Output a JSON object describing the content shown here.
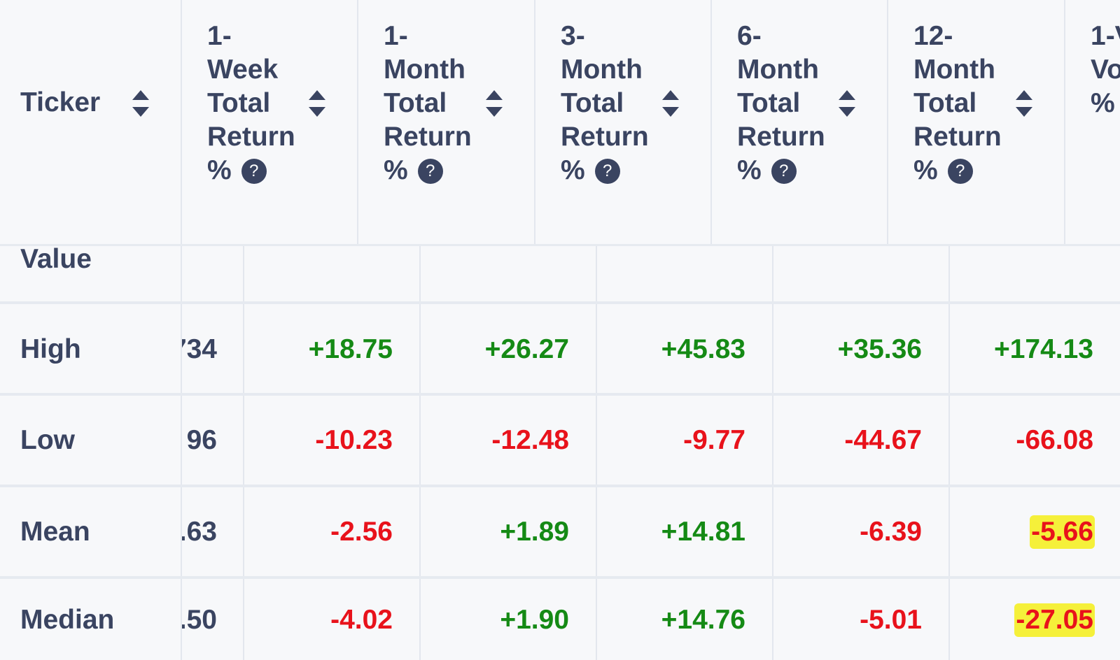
{
  "header": {
    "columns": [
      {
        "lines": [
          "Ticker"
        ]
      },
      {
        "lines": [
          "1-",
          "Week",
          "Total",
          "Return",
          "%"
        ]
      },
      {
        "lines": [
          "1-",
          "Month",
          "Total",
          "Return",
          "%"
        ]
      },
      {
        "lines": [
          "3-",
          "Month",
          "Total",
          "Return",
          "%"
        ]
      },
      {
        "lines": [
          "6-",
          "Month",
          "Total",
          "Return",
          "%"
        ]
      },
      {
        "lines": [
          "12-",
          "Month",
          "Total",
          "Return",
          "%"
        ]
      },
      {
        "lines": [
          "1-V",
          "Vo",
          "%"
        ]
      }
    ]
  },
  "table": {
    "section_label": "Value",
    "rows": [
      {
        "label": "High",
        "partial": "734",
        "cells": [
          {
            "text": "+18.75"
          },
          {
            "text": "+26.27"
          },
          {
            "text": "+45.83"
          },
          {
            "text": "+35.36"
          },
          {
            "text": "+174.13"
          }
        ]
      },
      {
        "label": "Low",
        "partial": "96",
        "cells": [
          {
            "text": "-10.23"
          },
          {
            "text": "-12.48"
          },
          {
            "text": "-9.77"
          },
          {
            "text": "-44.67"
          },
          {
            "text": "-66.08"
          }
        ]
      },
      {
        "label": "Mean",
        "partial": ".63",
        "cells": [
          {
            "text": "-2.56"
          },
          {
            "text": "+1.89"
          },
          {
            "text": "+14.81"
          },
          {
            "text": "-6.39"
          },
          {
            "text": "-5.66",
            "highlight": true
          }
        ]
      },
      {
        "label": "Median",
        "partial": ".50",
        "cells": [
          {
            "text": "-4.02"
          },
          {
            "text": "+1.90"
          },
          {
            "text": "+14.76"
          },
          {
            "text": "-5.01"
          },
          {
            "text": "-27.05",
            "highlight": true
          }
        ]
      }
    ]
  }
}
